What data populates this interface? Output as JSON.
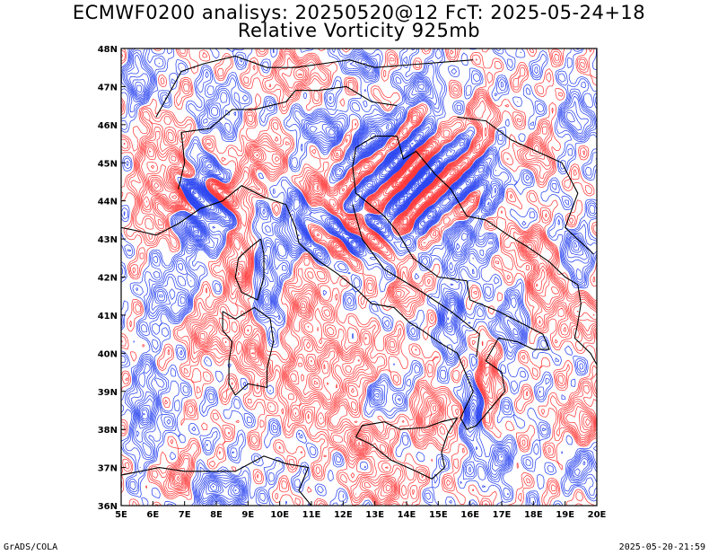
{
  "title_line1": "ECMWF0200 analisys: 20250520@12 FcT: 2025-05-24+18",
  "title_line2": "Relative Vorticity 925mb",
  "footer_left": "GrADS/COLA",
  "footer_right": "2025-05-20-21:59",
  "colors": {
    "positive_contours": "#ff3b3b",
    "negative_contours": "#2b45f0",
    "coastline": "#000000",
    "frame": "#000000"
  },
  "map": {
    "lon_range": [
      5,
      20
    ],
    "lat_range": [
      36,
      48
    ],
    "lon_ticks": [
      "5E",
      "6E",
      "7E",
      "8E",
      "9E",
      "10E",
      "11E",
      "12E",
      "13E",
      "14E",
      "15E",
      "16E",
      "17E",
      "18E",
      "19E",
      "20E"
    ],
    "lat_ticks": [
      "36N",
      "37N",
      "38N",
      "39N",
      "40N",
      "41N",
      "42N",
      "43N",
      "44N",
      "45N",
      "46N",
      "47N",
      "48N"
    ]
  }
}
